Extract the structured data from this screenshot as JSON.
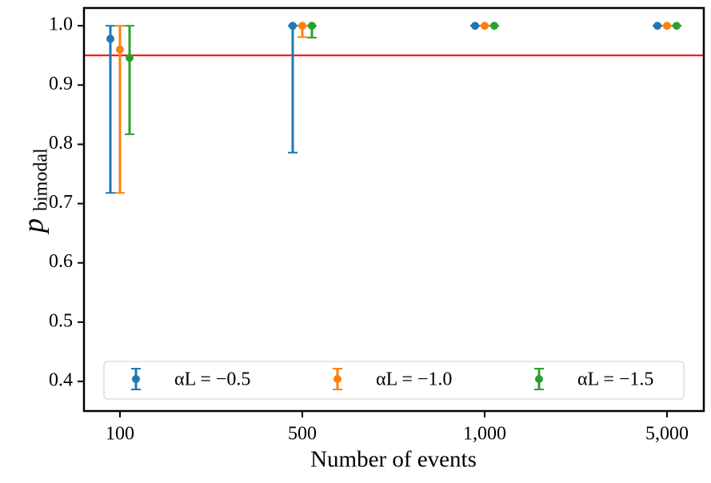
{
  "chart_data": {
    "type": "errorbar",
    "xlabel": "Number of events",
    "ylabel": "p",
    "ylabel_sub": "bimodal",
    "categories": [
      "100",
      "500",
      "1,000",
      "5,000"
    ],
    "series": [
      {
        "name": "αL = −0.5",
        "color": "#1f77b4",
        "values": [
          0.978,
          1,
          1,
          1
        ],
        "err_low": [
          0.26,
          0.214,
          0,
          0
        ],
        "err_high": [
          0.022,
          0,
          0,
          0
        ]
      },
      {
        "name": "αL = −1.0",
        "color": "#ff7f0e",
        "values": [
          0.96,
          1,
          1,
          1
        ],
        "err_low": [
          0.242,
          0.019,
          0,
          0
        ],
        "err_high": [
          0.04,
          0,
          0,
          0
        ]
      },
      {
        "name": "αL = −1.5",
        "color": "#2ca02c",
        "values": [
          0.946,
          1,
          1,
          1
        ],
        "err_low": [
          0.129,
          0.02,
          0,
          0
        ],
        "err_high": [
          0.054,
          0,
          0,
          0
        ]
      }
    ],
    "reference_line": {
      "value": 0.95,
      "color": "#ff0000"
    },
    "ylim": [
      0.35,
      1.03
    ],
    "yticks": [
      0.4,
      0.5,
      0.6,
      0.7,
      0.8,
      0.9,
      {
        "value": 1,
        "label": "1.0"
      }
    ],
    "legend": "lower center"
  }
}
